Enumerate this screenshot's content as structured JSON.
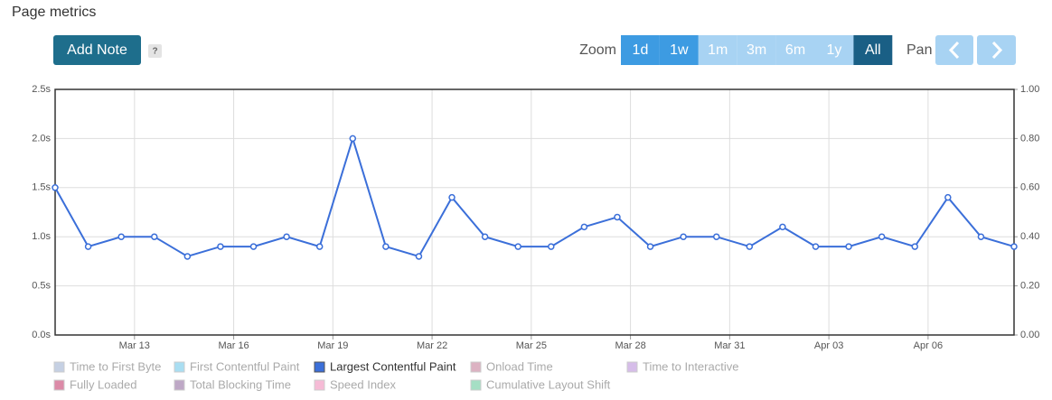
{
  "header": {
    "title": "Page metrics",
    "add_note": "Add Note",
    "help": "?"
  },
  "zoom": {
    "label": "Zoom",
    "options": [
      {
        "label": "1d",
        "state": "enabled"
      },
      {
        "label": "1w",
        "state": "enabled"
      },
      {
        "label": "1m",
        "state": "disabled"
      },
      {
        "label": "3m",
        "state": "disabled"
      },
      {
        "label": "6m",
        "state": "disabled"
      },
      {
        "label": "1y",
        "state": "disabled"
      },
      {
        "label": "All",
        "state": "active"
      }
    ]
  },
  "pan": {
    "label": "Pan"
  },
  "chart_data": {
    "type": "line",
    "x": [
      10.6,
      11.6,
      12.6,
      13.6,
      14.6,
      15.6,
      16.6,
      17.6,
      18.6,
      19.6,
      20.6,
      21.6,
      22.6,
      23.6,
      24.6,
      25.6,
      26.6,
      27.6,
      28.6,
      29.6,
      30.6,
      31.6,
      32.6,
      33.6,
      34.6,
      35.6,
      36.6,
      37.6,
      38.6,
      39.6
    ],
    "xlim": [
      10.6,
      39.6
    ],
    "xticks": [
      {
        "value": 13,
        "label": "Mar 13"
      },
      {
        "value": 16,
        "label": "Mar 16"
      },
      {
        "value": 19,
        "label": "Mar 19"
      },
      {
        "value": 22,
        "label": "Mar 22"
      },
      {
        "value": 25,
        "label": "Mar 25"
      },
      {
        "value": 28,
        "label": "Mar 28"
      },
      {
        "value": 31,
        "label": "Mar 31"
      },
      {
        "value": 34,
        "label": "Apr 03"
      },
      {
        "value": 37,
        "label": "Apr 06"
      }
    ],
    "ylim": [
      0,
      2.5
    ],
    "yticks": [
      {
        "value": 0,
        "label": "0.0s"
      },
      {
        "value": 0.5,
        "label": "0.5s"
      },
      {
        "value": 1,
        "label": "1.0s"
      },
      {
        "value": 1.5,
        "label": "1.5s"
      },
      {
        "value": 2,
        "label": "2.0s"
      },
      {
        "value": 2.5,
        "label": "2.5s"
      }
    ],
    "y2lim": [
      0,
      1
    ],
    "y2ticks": [
      {
        "value": 0,
        "label": "0.00"
      },
      {
        "value": 0.2,
        "label": "0.20"
      },
      {
        "value": 0.4,
        "label": "0.40"
      },
      {
        "value": 0.6,
        "label": "0.60"
      },
      {
        "value": 0.8,
        "label": "0.80"
      },
      {
        "value": 1,
        "label": "1.00"
      }
    ],
    "grid": true,
    "series": [
      {
        "name": "Largest Contentful Paint",
        "color": "#3b6fd9",
        "values": [
          1.5,
          0.9,
          1.0,
          1.0,
          0.8,
          0.9,
          0.9,
          1.0,
          0.9,
          2.0,
          0.9,
          0.8,
          1.4,
          1.0,
          0.9,
          0.9,
          1.1,
          1.2,
          0.9,
          1.0,
          1.0,
          0.9,
          1.1,
          0.9,
          0.9,
          1.0,
          0.9,
          1.4,
          1.0,
          0.9
        ]
      }
    ],
    "legend": [
      {
        "name": "Time to First Byte",
        "color": "#c5d0e3",
        "visible": false
      },
      {
        "name": "First Contentful Paint",
        "color": "#a9def2",
        "visible": false
      },
      {
        "name": "Largest Contentful Paint",
        "color": "#3b6fd9",
        "visible": true
      },
      {
        "name": "Onload Time",
        "color": "#dcb2c2",
        "visible": false
      },
      {
        "name": "Time to Interactive",
        "color": "#d6bde9",
        "visible": false
      },
      {
        "name": "Fully Loaded",
        "color": "#dc8aa7",
        "visible": false
      },
      {
        "name": "Total Blocking Time",
        "color": "#bea8c6",
        "visible": false
      },
      {
        "name": "Speed Index",
        "color": "#f6bbd6",
        "visible": false
      },
      {
        "name": "Cumulative Layout Shift",
        "color": "#a5dfc4",
        "visible": false
      }
    ]
  }
}
